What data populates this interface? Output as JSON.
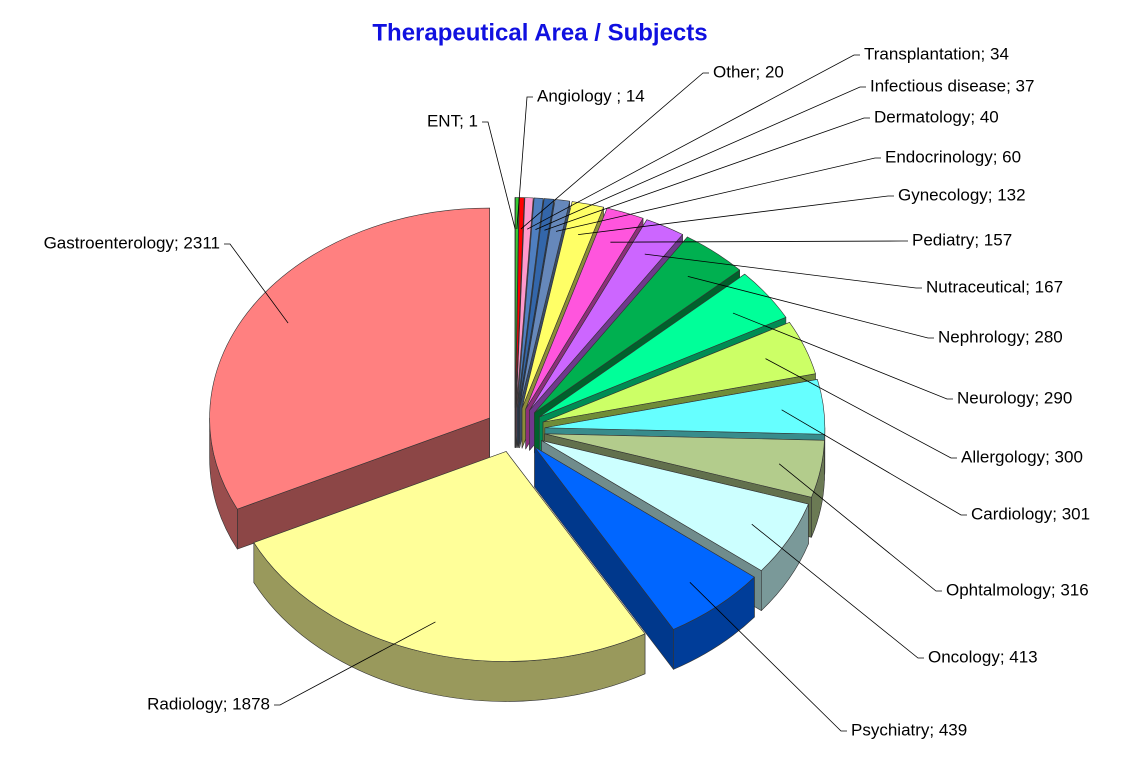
{
  "chart_data": {
    "type": "pie",
    "title": "Therapeutical Area / Subjects",
    "values": [
      1,
      14,
      20,
      34,
      37,
      40,
      60,
      132,
      157,
      167,
      280,
      290,
      300,
      301,
      316,
      413,
      439,
      1878,
      2311
    ],
    "value_labels": [
      "ENT; 1",
      "Angiology ; 14",
      "Other; 20",
      "Transplantation; 34",
      "Infectious disease; 37",
      "Dermatology; 40",
      "Endocrinology; 60",
      "Gynecology; 132",
      "Pediatry; 157",
      "Nutraceutical; 167",
      "Nephrology; 280",
      "Neurology; 290",
      "Allergology; 300",
      "Cardiology; 301",
      "Ophtalmology; 316",
      "Oncology; 413",
      "Psychiatry; 439",
      "Radiology; 1878",
      "Gastroenterology; 2311"
    ],
    "colors": [
      "#cc00cc",
      "#33cc33",
      "#ff0000",
      "#ff99cc",
      "#4f7fc0",
      "#3366aa",
      "#6688bb",
      "#ffff66",
      "#ff55dd",
      "#cc66ff",
      "#00b050",
      "#00ff99",
      "#ccff66",
      "#66ffff",
      "#b3cc8c",
      "#ccffff",
      "#0066ff",
      "#ffff99",
      "#ff8080"
    ]
  }
}
